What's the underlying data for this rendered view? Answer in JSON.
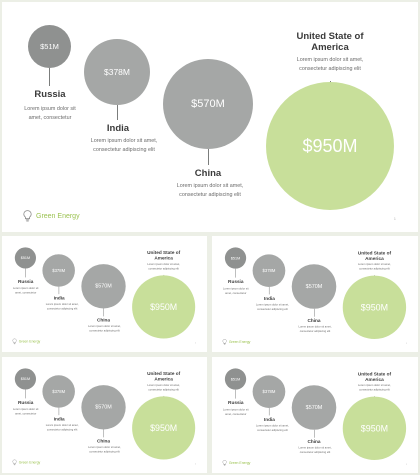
{
  "brand": {
    "text": "Green Energy",
    "icon": "lightbulb-icon"
  },
  "page_number": "1",
  "colors": {
    "accent": "#9bc250",
    "bubble_gray": "#a5a7a6",
    "bubble_dark": "#8f9190",
    "bubble_green": "#c8df9a"
  },
  "countries": [
    {
      "id": "russia",
      "name": "Russia",
      "value": "$51M",
      "description": "Lorem ipsum dolor sit amet, consectetur"
    },
    {
      "id": "india",
      "name": "India",
      "value": "$378M",
      "description": "Lorem ipsum dolor sit amet, consectetur adipiscing elit"
    },
    {
      "id": "china",
      "name": "China",
      "value": "$570M",
      "description": "Lorem ipsum dolor sit amet, consectetur adipiscing elit"
    },
    {
      "id": "usa",
      "name": "United State of America",
      "value": "$950M",
      "description": "Lorem ipsum dolor sit amet, consectetur adipiscing elit"
    }
  ]
}
